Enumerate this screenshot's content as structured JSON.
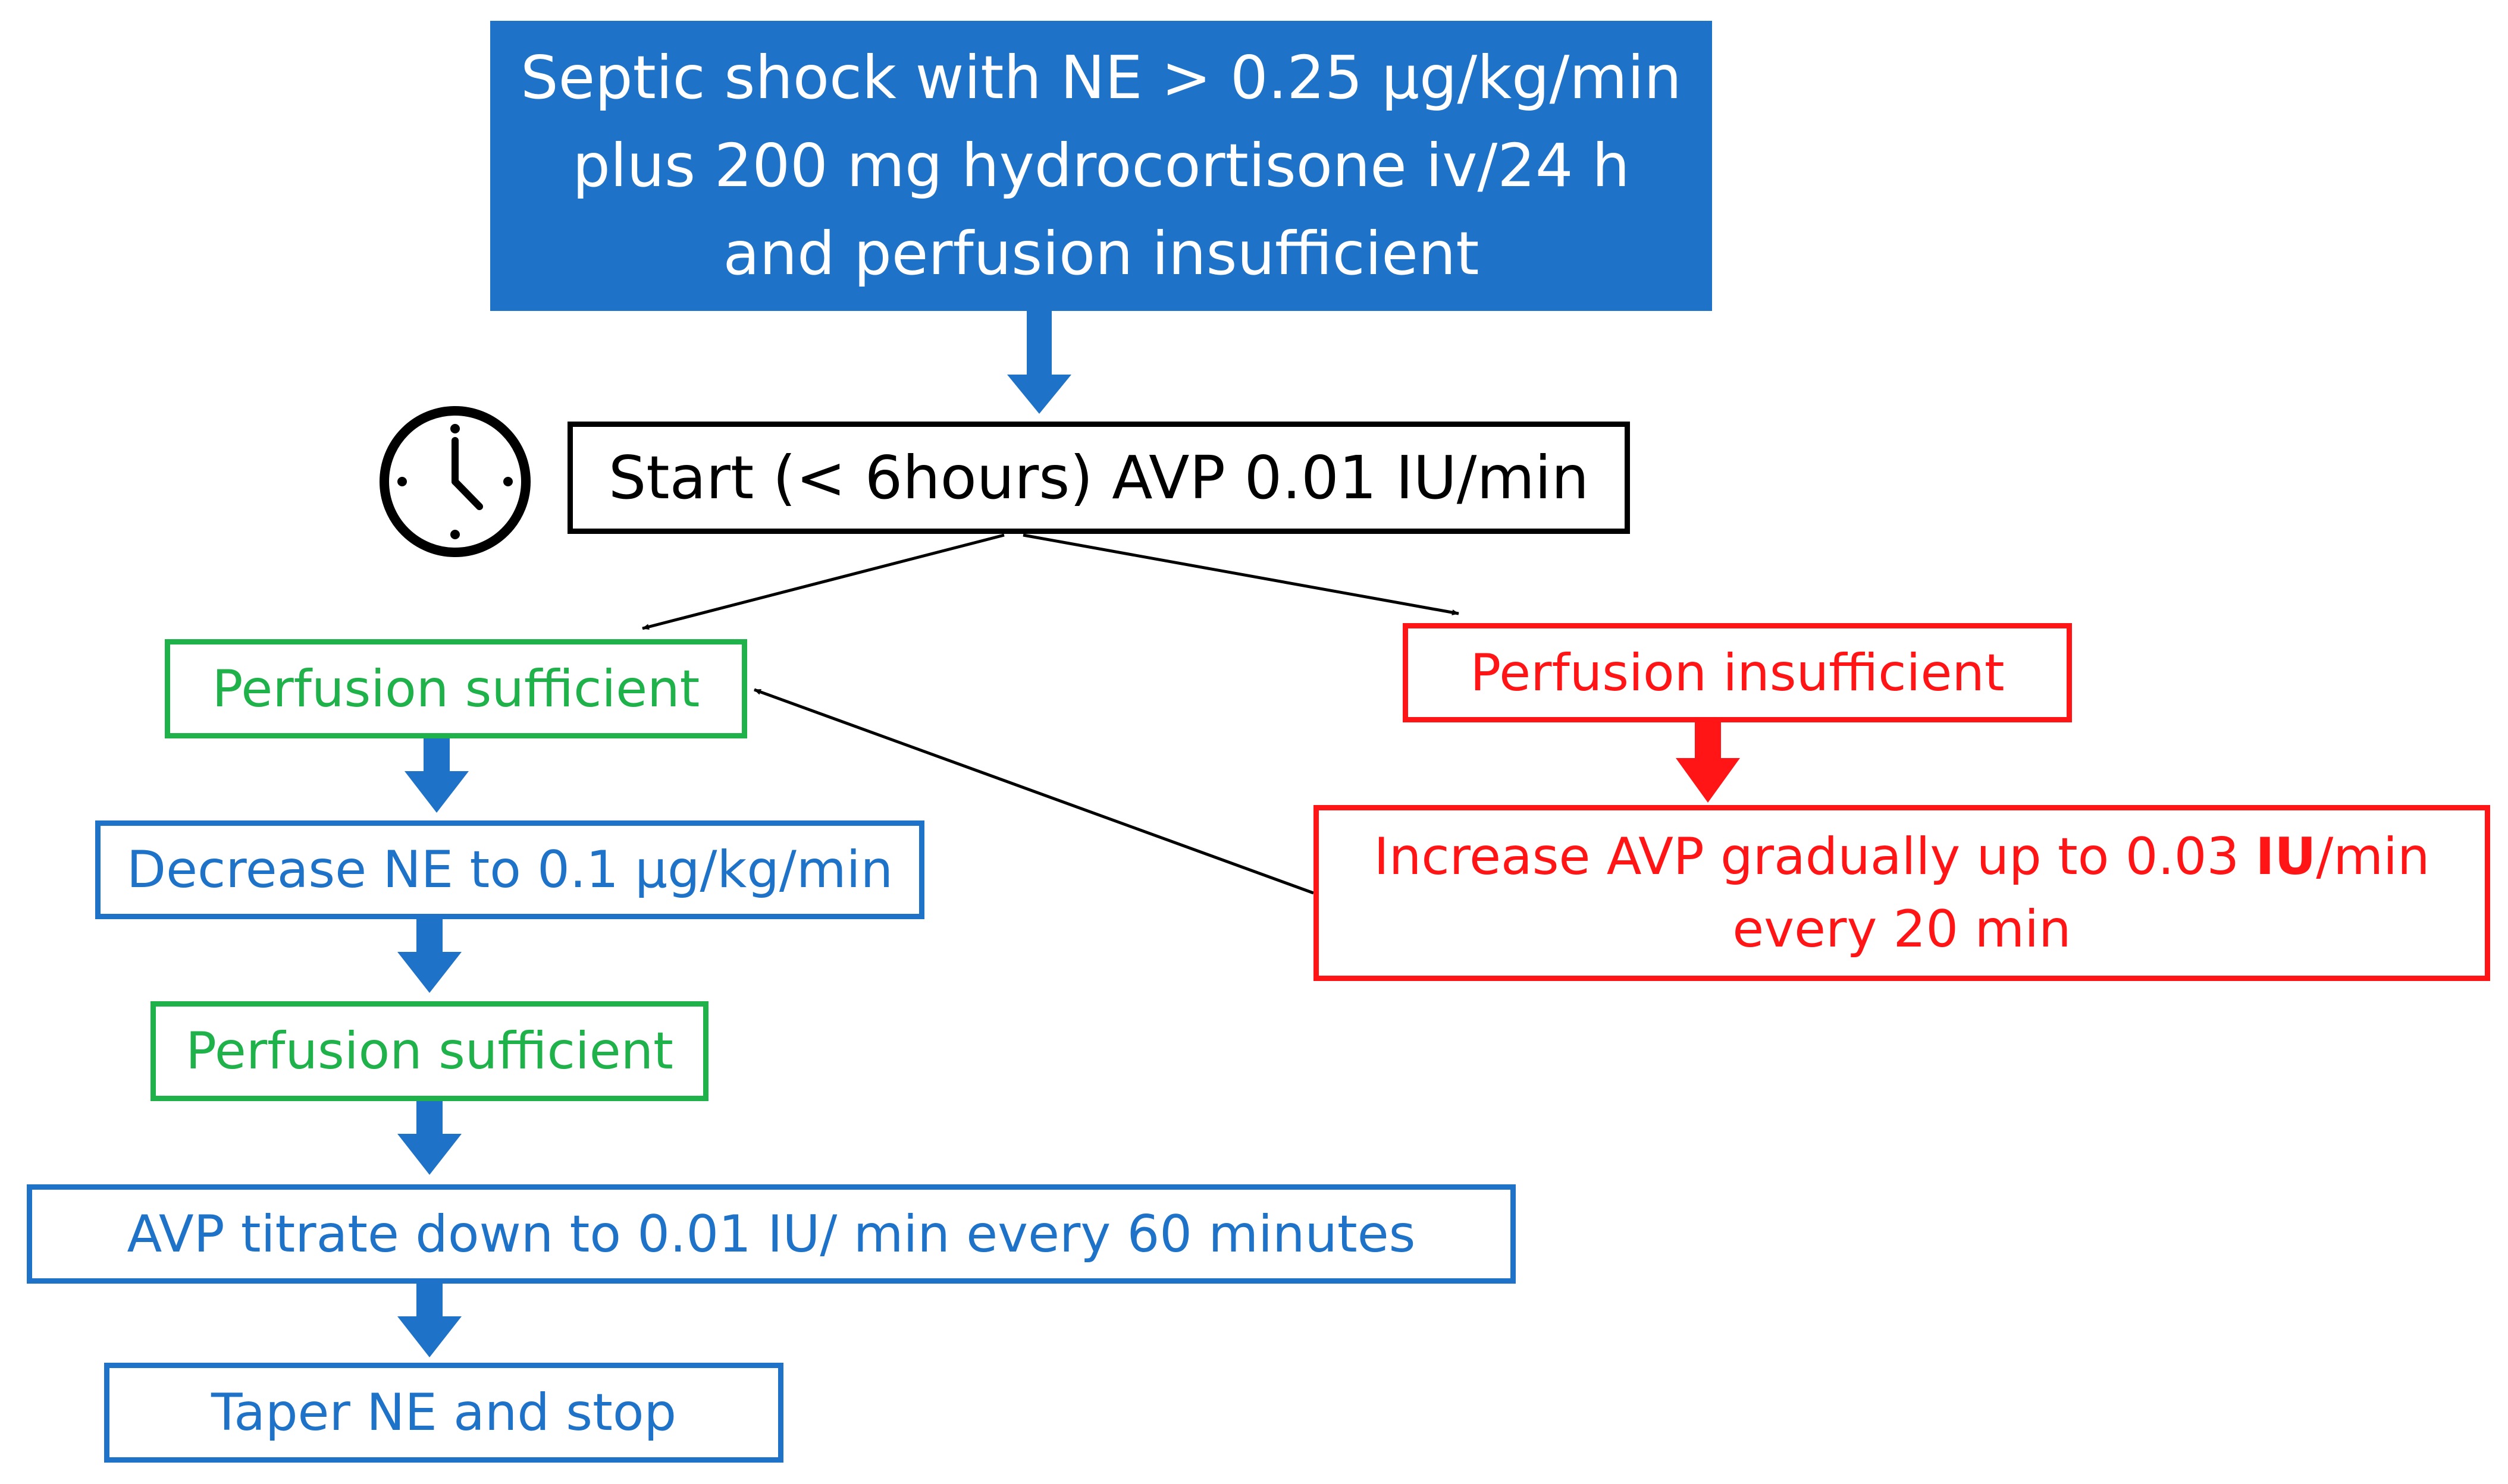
{
  "diagram": {
    "top_box": {
      "lines": [
        "Septic shock with NE > 0.25 µg/kg/min",
        "plus 200 mg hydrocortisone iv/24 h",
        "and perfusion insufficient"
      ]
    },
    "start_box": {
      "label": "Start (< 6hours) AVP 0.01 IU/min"
    },
    "perfusion_sufficient_1": {
      "label": "Perfusion sufficient"
    },
    "decrease_ne": {
      "label": "Decrease NE to 0.1 µg/kg/min"
    },
    "perfusion_sufficient_2": {
      "label": "Perfusion sufficient"
    },
    "avp_titrate": {
      "label": "AVP titrate down to 0.01 IU/ min every 60 minutes"
    },
    "taper_ne": {
      "label": "Taper NE and stop"
    },
    "perfusion_insufficient": {
      "label": "Perfusion insufficient"
    },
    "increase_avp": {
      "line1_prefix": "Increase AVP gradually up to 0.03 ",
      "line1_bold": "IU",
      "line1_suffix": "/min",
      "line2": "every 20 min"
    },
    "colors": {
      "blue": "#1e73c8",
      "green": "#1fb14a",
      "red": "#ff1515",
      "black": "#000000"
    },
    "icons": {
      "clock": "clock-icon"
    }
  }
}
